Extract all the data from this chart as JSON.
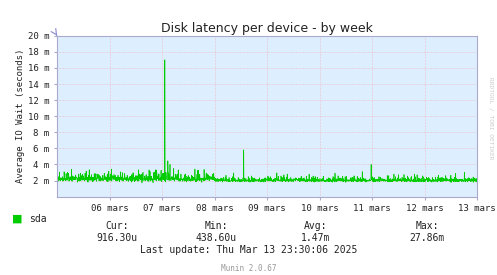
{
  "title": "Disk latency per device - by week",
  "ylabel": "Average IO Wait (seconds)",
  "bg_color": "#FFFFFF",
  "plot_bg_color": "#DDEEFF",
  "grid_color": "#FF9999",
  "line_color": "#00CC00",
  "border_color": "#AAAACC",
  "ytick_labels": [
    "2 m",
    "4 m",
    "6 m",
    "8 m",
    "10 m",
    "12 m",
    "14 m",
    "16 m",
    "18 m",
    "20 m"
  ],
  "ytick_values": [
    2e-06,
    4e-06,
    6e-06,
    8e-06,
    1e-05,
    1.2e-05,
    1.4e-05,
    1.6e-05,
    1.8e-05,
    2e-05
  ],
  "xtick_labels": [
    "06 mars",
    "07 mars",
    "08 mars",
    "09 mars",
    "10 mars",
    "11 mars",
    "12 mars",
    "13 mars"
  ],
  "xtick_positions": [
    1,
    2,
    3,
    4,
    5,
    6,
    7,
    8
  ],
  "ymax": 2e-05,
  "ymin": 0.0,
  "legend_label": "sda",
  "legend_color": "#00CC00",
  "cur_label": "Cur:",
  "cur_value": "916.30u",
  "min_label": "Min:",
  "min_value": "438.60u",
  "avg_label": "Avg:",
  "avg_value": "1.47m",
  "max_label": "Max:",
  "max_value": "27.86m",
  "last_update": "Last update: Thu Mar 13 23:30:06 2025",
  "munin_version": "Munin 2.0.67",
  "watermark": "RRDTOOL / TOBI OETIKER",
  "title_color": "#222222",
  "text_color": "#222222",
  "munin_color": "#999999",
  "watermark_color": "#CCCCCC"
}
